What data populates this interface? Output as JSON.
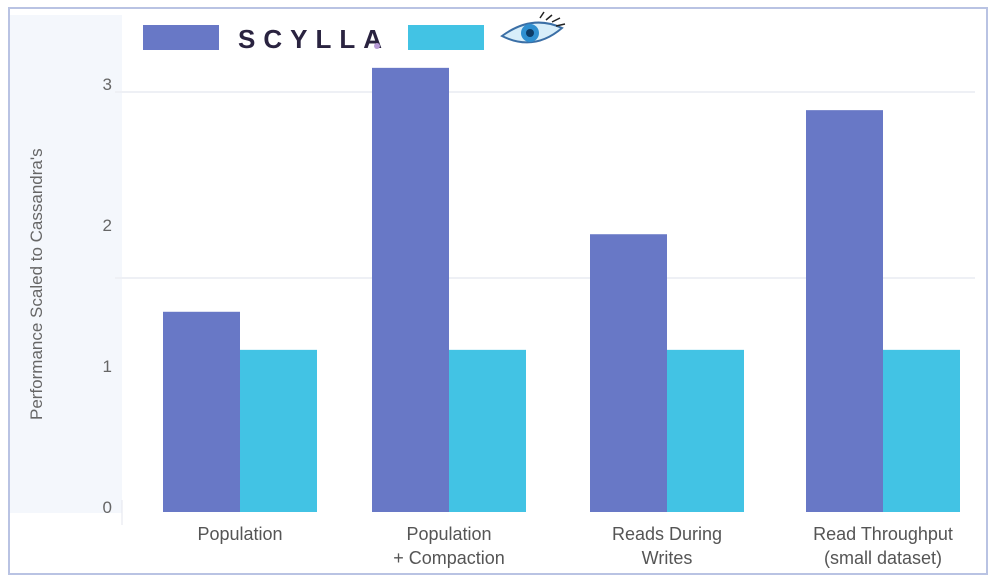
{
  "chart_data": {
    "type": "bar",
    "title": "",
    "xlabel": "",
    "ylabel": "Performance Scaled to Cassandra's",
    "ylim": [
      0,
      3.3
    ],
    "yticks": [
      "0",
      "1",
      "2",
      "3"
    ],
    "categories": [
      [
        "Population"
      ],
      [
        "Population",
        "+ Compaction"
      ],
      [
        "Reads During",
        "Writes"
      ],
      [
        "Read Throughput",
        "(small dataset)"
      ]
    ],
    "series": [
      {
        "name": "SCYLLA",
        "color": "#6878c6",
        "values": [
          1.42,
          3.15,
          1.97,
          2.85
        ]
      },
      {
        "name": "Cassandra",
        "color": "#42c3e4",
        "values": [
          1.15,
          1.15,
          1.15,
          1.15
        ]
      }
    ],
    "legend": {
      "placement": "top-left",
      "scylla_text": "SCYLLA",
      "cassandra_icon": "cassandra-eye-icon"
    },
    "grid": true
  }
}
